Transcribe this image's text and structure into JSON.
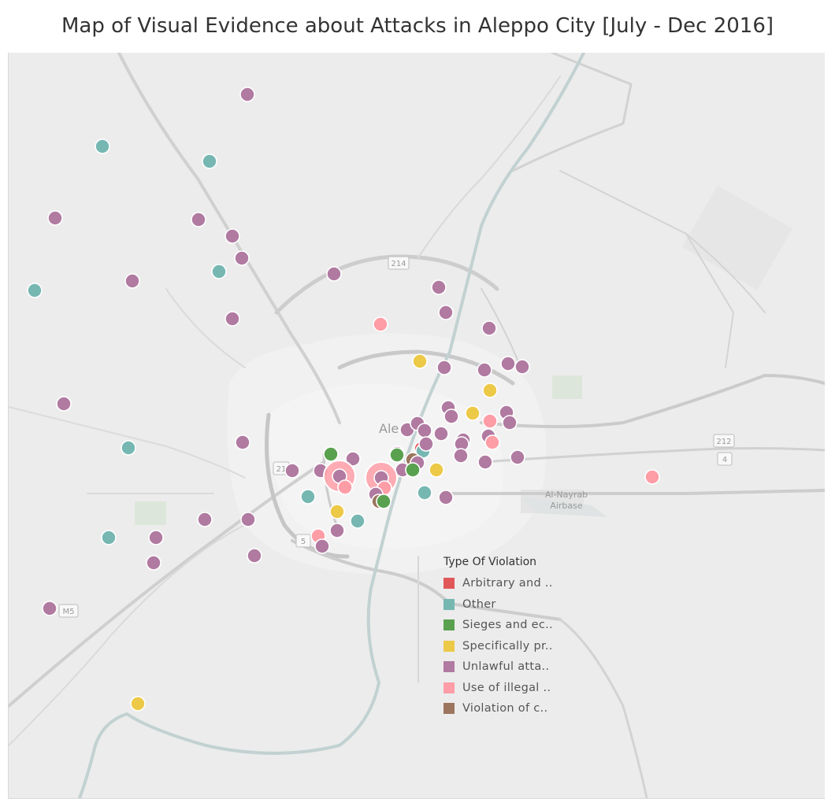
{
  "title": "Map of Visual Evidence about Attacks in Aleppo City [July - Dec 2016]",
  "map_labels": {
    "city": "Ale",
    "airbase_line1": "Al-Nayrab",
    "airbase_line2": "Airbase"
  },
  "road_shields": [
    "214",
    "212",
    "4",
    "5",
    "M5",
    "21"
  ],
  "legend": {
    "title": "Type Of Violation",
    "items": [
      {
        "key": "arbitrary",
        "label": "Arbitrary and ..",
        "color": "#e15759"
      },
      {
        "key": "other",
        "label": "Other",
        "color": "#76b7b2"
      },
      {
        "key": "sieges",
        "label": "Sieges and ec..",
        "color": "#59a14f"
      },
      {
        "key": "specifically",
        "label": "Specifically pr..",
        "color": "#edc948"
      },
      {
        "key": "unlawful",
        "label": "Unlawful atta..",
        "color": "#b07aa1"
      },
      {
        "key": "illegal",
        "label": "Use of illegal ..",
        "color": "#ff9da7"
      },
      {
        "key": "violation",
        "label": "Violation of c..",
        "color": "#9c755f"
      }
    ]
  }
}
